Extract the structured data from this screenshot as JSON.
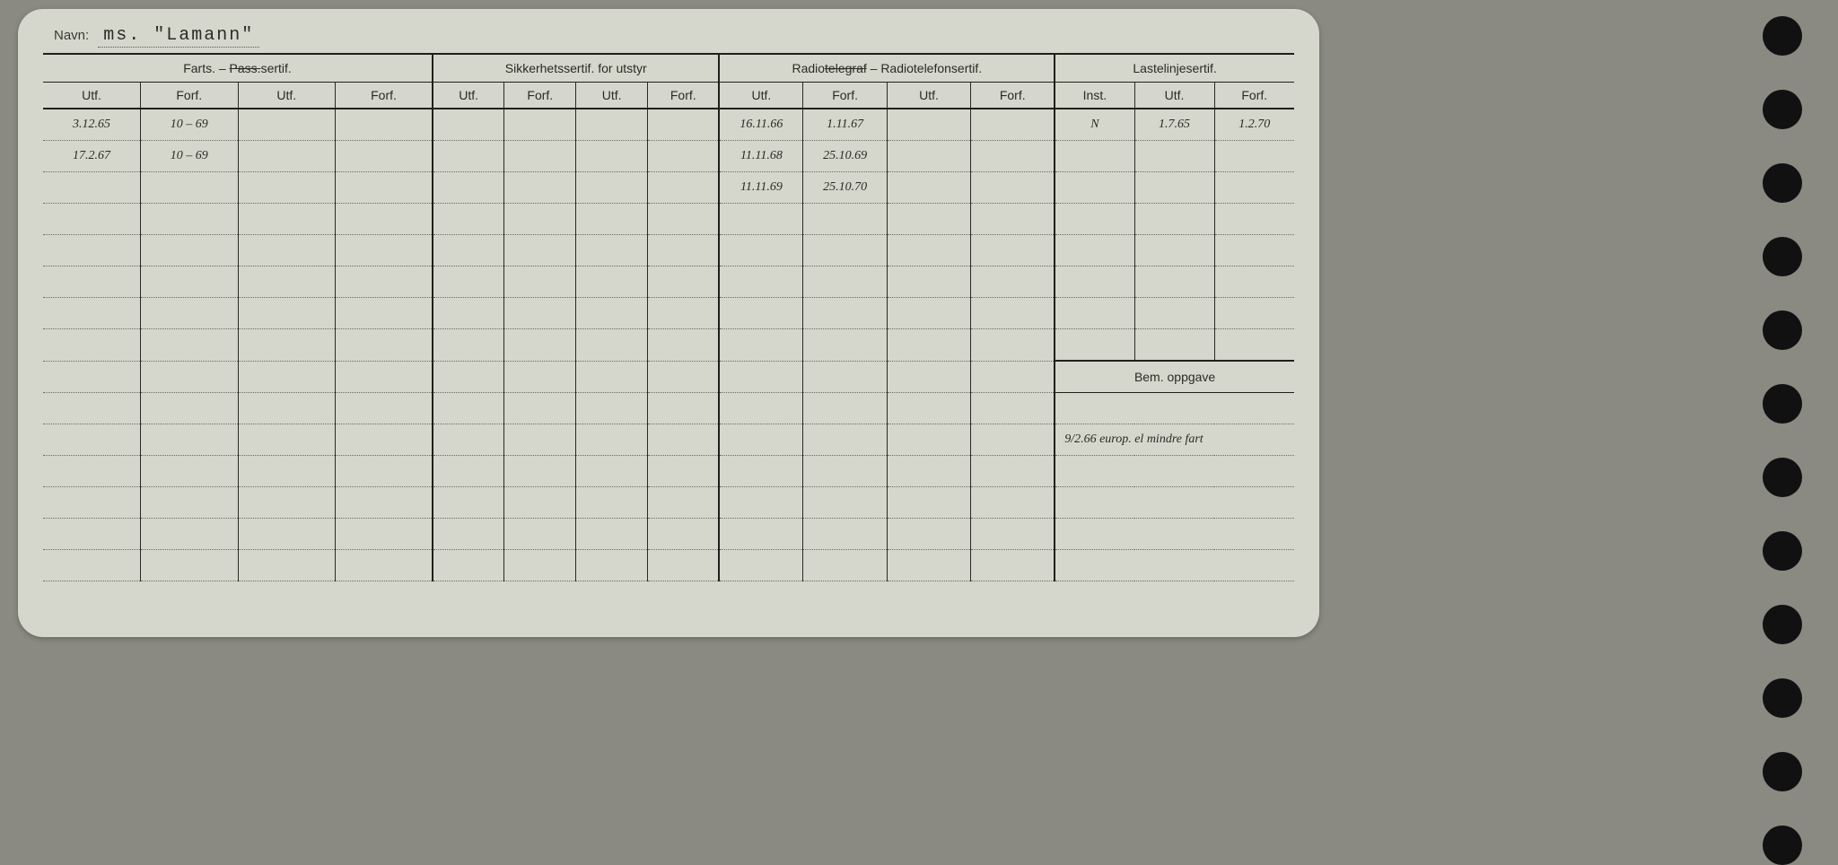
{
  "colors": {
    "page_bg": "#8a8a82",
    "card_bg": "#d6d7cc",
    "line": "#2a2a25",
    "dotted": "#6a6a60",
    "hole": "#111111",
    "hand": "#4a4a45"
  },
  "navn": {
    "label": "Navn:",
    "value": "ms. \"Lamann\""
  },
  "headers": {
    "g1": {
      "title_pre": "Farts. – ",
      "title_strike": "Pass.",
      "title_post": "sertif.",
      "cols": [
        "Utf.",
        "Forf.",
        "Utf.",
        "Forf."
      ]
    },
    "g2": {
      "title": "Sikkerhetssertif. for utstyr",
      "cols": [
        "Utf.",
        "Forf.",
        "Utf.",
        "Forf."
      ]
    },
    "g3": {
      "title_pre": "Radio",
      "title_strike": "telegraf",
      "title_post": " – Radiotelefonsertif.",
      "cols": [
        "Utf.",
        "Forf.",
        "Utf.",
        "Forf."
      ]
    },
    "g4": {
      "title": "Lastelinjesertif.",
      "cols": [
        "Inst.",
        "Utf.",
        "Forf."
      ]
    }
  },
  "rows": [
    {
      "c0": "3.12.65",
      "c1": "10 – 69",
      "c8": "16.11.66",
      "c9": "1.11.67",
      "c12": "N",
      "c13": "1.7.65",
      "c14": "1.2.70"
    },
    {
      "c0": "17.2.67",
      "c1": "10 – 69",
      "c8": "11.11.68",
      "c9": "25.10.69"
    },
    {
      "c8": "11.11.69",
      "c9": "25.10.70"
    },
    {},
    {},
    {},
    {},
    {},
    {}
  ],
  "bem": {
    "header": "Bem. oppgave",
    "value": "9/2.66  europ. el mindre fart"
  },
  "holes": 12
}
